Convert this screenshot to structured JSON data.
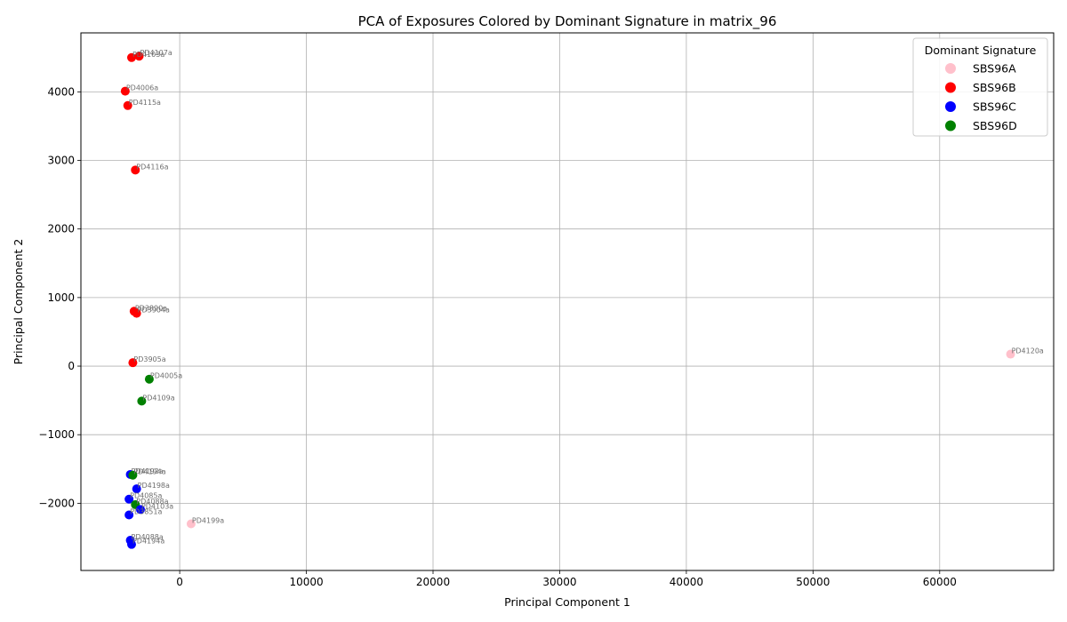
{
  "chart_data": {
    "type": "scatter",
    "title": "PCA of Exposures Colored by Dominant Signature in matrix_96",
    "xlabel": "Principal Component 1",
    "ylabel": "Principal Component 2",
    "xlim": [
      -7800,
      69000
    ],
    "ylim": [
      -2980,
      4860
    ],
    "xticks": [
      0,
      10000,
      20000,
      30000,
      40000,
      50000,
      60000
    ],
    "yticks": [
      -2000,
      -1000,
      0,
      1000,
      2000,
      3000,
      4000
    ],
    "xtick_labels": [
      "0",
      "10000",
      "20000",
      "30000",
      "40000",
      "50000",
      "60000"
    ],
    "ytick_labels": [
      "−2000",
      "−1000",
      "0",
      "1000",
      "2000",
      "3000",
      "4000"
    ],
    "grid": true,
    "legend": {
      "title": "Dominant Signature",
      "location": "upper right",
      "entries": [
        {
          "name": "SBS96A",
          "color": "#ffc0cb"
        },
        {
          "name": "SBS96B",
          "color": "#ff0000"
        },
        {
          "name": "SBS96C",
          "color": "#0000ff"
        },
        {
          "name": "SBS96D",
          "color": "#008000"
        }
      ]
    },
    "points": [
      {
        "label": "PD4107a",
        "x": -3200,
        "y": 4520,
        "signature": "SBS96B"
      },
      {
        "label": "PD4103a",
        "x": -3800,
        "y": 4500,
        "signature": "SBS96B"
      },
      {
        "label": "PD4006a",
        "x": -4300,
        "y": 4010,
        "signature": "SBS96B"
      },
      {
        "label": "PD4115a",
        "x": -4100,
        "y": 3800,
        "signature": "SBS96B"
      },
      {
        "label": "PD4116a",
        "x": -3500,
        "y": 2860,
        "signature": "SBS96B"
      },
      {
        "label": "PD3890a",
        "x": -3600,
        "y": 800,
        "signature": "SBS96B"
      },
      {
        "label": "PD3904a",
        "x": -3400,
        "y": 770,
        "signature": "SBS96B"
      },
      {
        "label": "PD3905a",
        "x": -3700,
        "y": 50,
        "signature": "SBS96B"
      },
      {
        "label": "PD4005a",
        "x": -2400,
        "y": -190,
        "signature": "SBS96D"
      },
      {
        "label": "PD4109a",
        "x": -3000,
        "y": -510,
        "signature": "SBS96D"
      },
      {
        "label": "PD4192a",
        "x": -3900,
        "y": -1580,
        "signature": "SBS96C"
      },
      {
        "label": "PD4194a",
        "x": -3700,
        "y": -1590,
        "signature": "SBS96D"
      },
      {
        "label": "PD4198a",
        "x": -3400,
        "y": -1790,
        "signature": "SBS96C"
      },
      {
        "label": "PD4085a",
        "x": -4000,
        "y": -1940,
        "signature": "SBS96C"
      },
      {
        "label": "PD4088a",
        "x": -3500,
        "y": -2020,
        "signature": "SBS96D"
      },
      {
        "label": "PD4103a",
        "x": -3100,
        "y": -2090,
        "signature": "SBS96C"
      },
      {
        "label": "PD3851a",
        "x": -4000,
        "y": -2170,
        "signature": "SBS96C"
      },
      {
        "label": "PD4199a",
        "x": 900,
        "y": -2300,
        "signature": "SBS96A"
      },
      {
        "label": "PD4088a",
        "x": -3900,
        "y": -2540,
        "signature": "SBS96C"
      },
      {
        "label": "PD4194a",
        "x": -3800,
        "y": -2600,
        "signature": "SBS96C"
      },
      {
        "label": "PD4120a",
        "x": 65600,
        "y": 175,
        "signature": "SBS96A"
      }
    ]
  }
}
